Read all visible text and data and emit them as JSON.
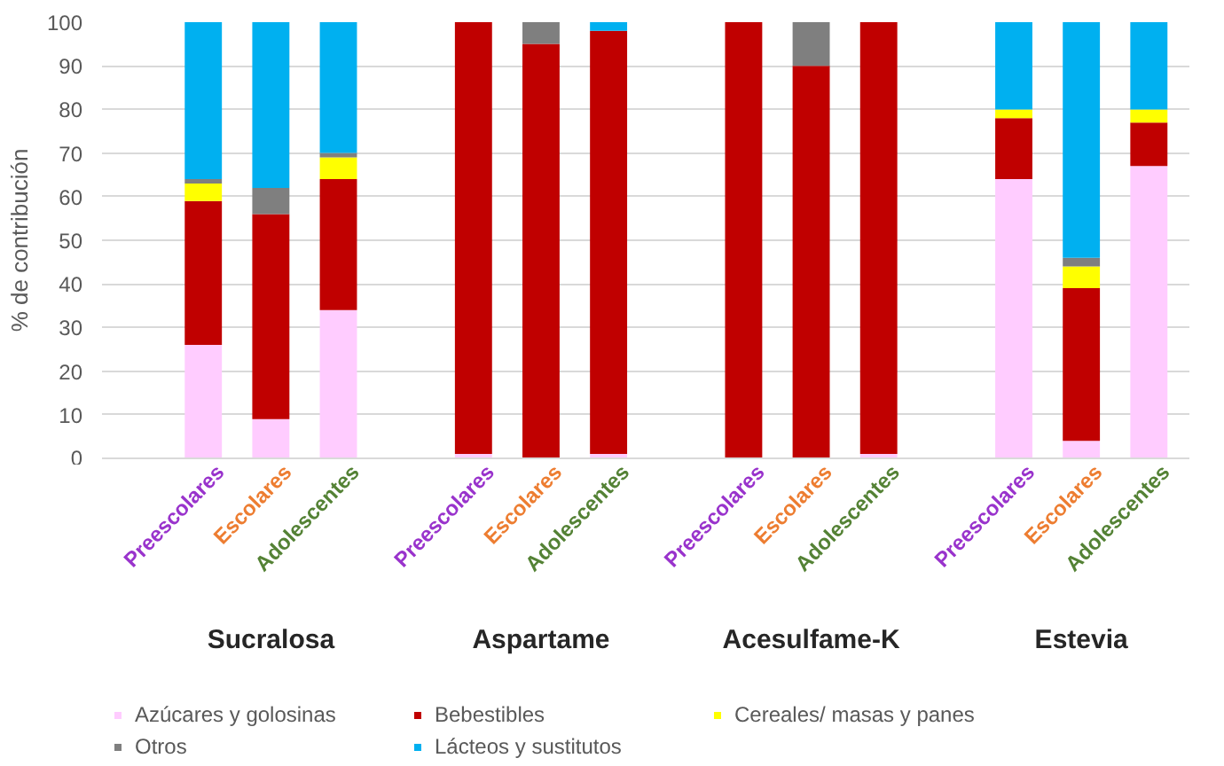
{
  "chart_data": {
    "type": "bar",
    "stacked": true,
    "ylabel": "% de contribución",
    "categories": [
      "Preescolares",
      "Escolares",
      "Adolescentes",
      null,
      "Preescolares",
      "Escolares",
      "Adolescentes",
      null,
      "Preescolares",
      "Escolares",
      "Adolescentes",
      null,
      "Preescolares",
      "Escolares",
      "Adolescentes"
    ],
    "annotations": [
      "Sucralosa",
      "Aspartame",
      "Acesulfame-K",
      "Estevia"
    ],
    "series": [
      {
        "name": "Azúcares y golosinas",
        "color": "#ffccff",
        "values": [
          26,
          9,
          34,
          null,
          1,
          0,
          1,
          null,
          0,
          0,
          1,
          null,
          64,
          4,
          67
        ]
      },
      {
        "name": "Bebestibles",
        "color": "#c00000",
        "values": [
          33,
          47,
          30,
          null,
          99,
          95,
          97,
          null,
          100,
          90,
          99,
          null,
          14,
          35,
          10
        ]
      },
      {
        "name": "Cereales/ masas y panes",
        "color": "#ffff00",
        "values": [
          4,
          0,
          5,
          null,
          0,
          0,
          0,
          null,
          0,
          0,
          0,
          null,
          2,
          5,
          3
        ]
      },
      {
        "name": "Otros",
        "color": "#7f7f7f",
        "values": [
          1,
          6,
          1,
          null,
          0,
          5,
          0,
          null,
          0,
          10,
          0,
          null,
          0,
          2,
          0
        ]
      },
      {
        "name": "Lácteos y sustitutos",
        "color": "#00b0f0",
        "values": [
          36,
          38,
          30,
          null,
          0,
          0,
          2,
          null,
          0,
          0,
          0,
          null,
          20,
          54,
          20
        ]
      }
    ],
    "ylim": [
      0,
      100
    ],
    "yticks": [
      0,
      10,
      20,
      30,
      40,
      50,
      60,
      70,
      80,
      90,
      100
    ],
    "grid": "y",
    "legend": "bottom"
  }
}
